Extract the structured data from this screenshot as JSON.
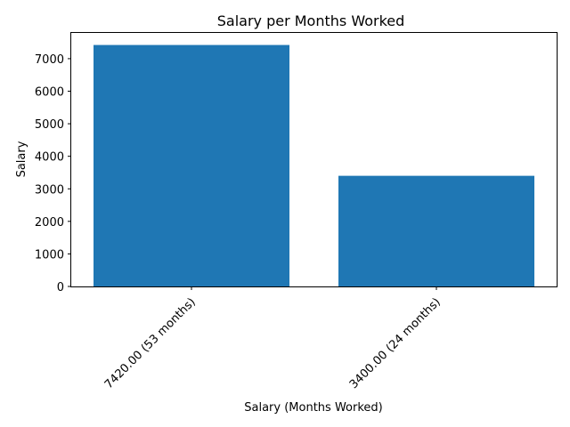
{
  "chart_data": {
    "type": "bar",
    "title": "Salary per Months Worked",
    "xlabel": "Salary (Months Worked)",
    "ylabel": "Salary",
    "categories": [
      "7420.00 (53 months)",
      "3400.00 (24 months)"
    ],
    "values": [
      7420,
      3400
    ],
    "ylim": [
      0,
      7791
    ],
    "yticks": [
      0,
      1000,
      2000,
      3000,
      4000,
      5000,
      6000,
      7000
    ],
    "x_tick_rotation_deg": 45,
    "grid": false,
    "legend": "none",
    "bar_color": "#1f77b4"
  }
}
